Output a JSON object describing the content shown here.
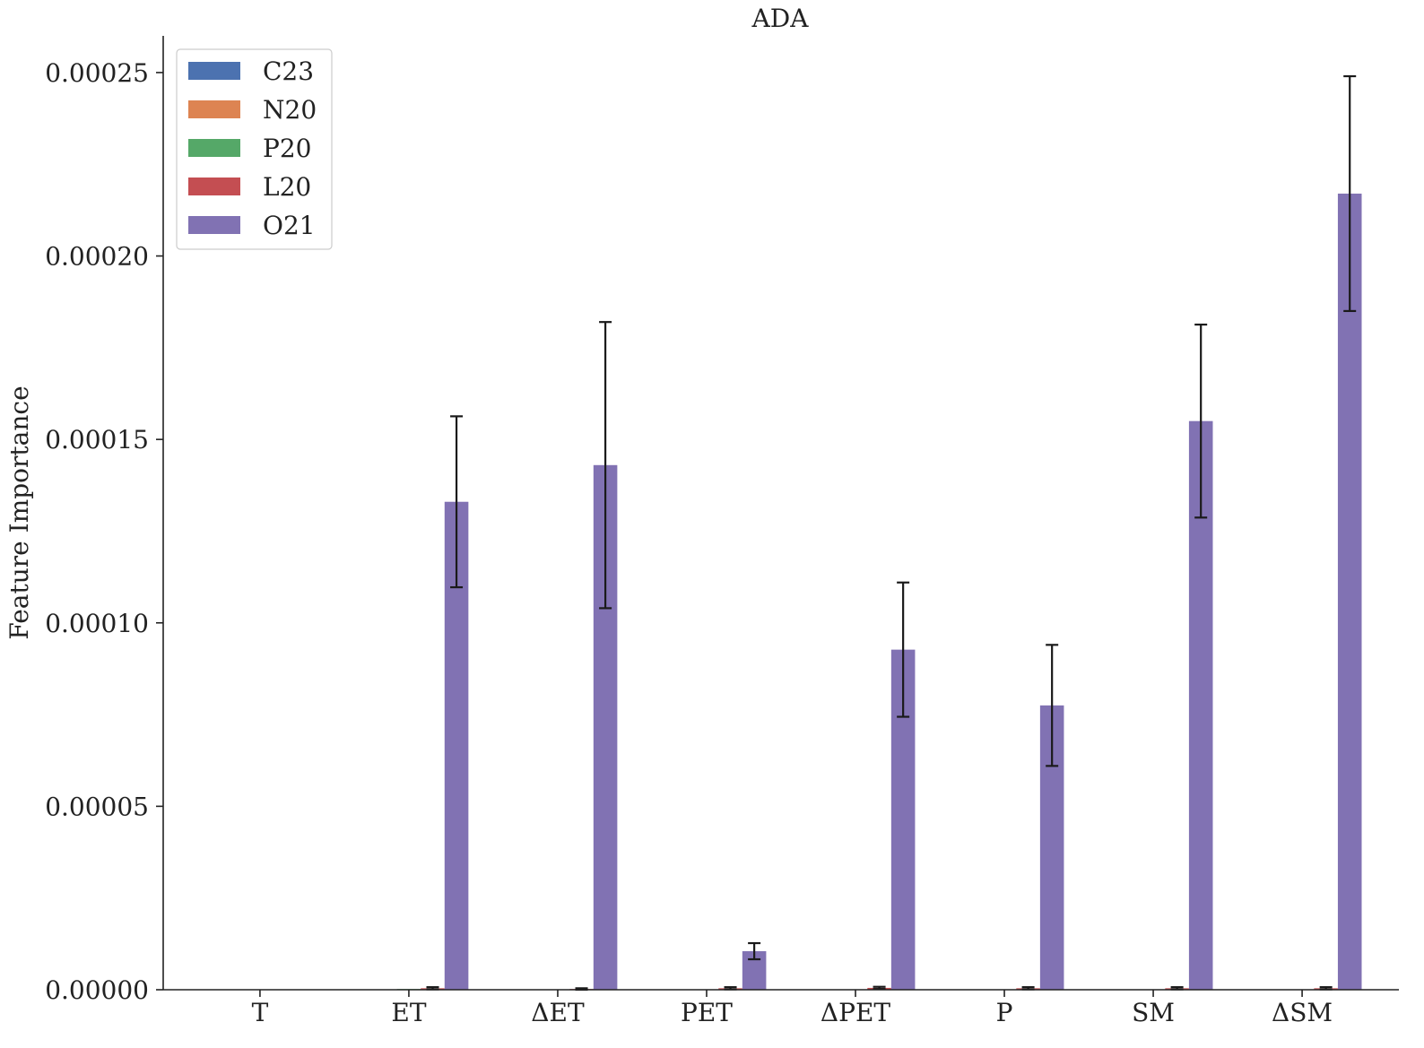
{
  "chart_data": {
    "type": "bar",
    "title": "ADA",
    "xlabel": "",
    "ylabel": "Feature Importance",
    "ylim": [
      0,
      0.00026
    ],
    "yticks": [
      "0.00000",
      "0.00005",
      "0.00010",
      "0.00015",
      "0.00020",
      "0.00025"
    ],
    "ytick_values": [
      0,
      5e-05,
      0.0001,
      0.00015,
      0.0002,
      0.00025
    ],
    "categories": [
      "T",
      "ET",
      "ΔET",
      "PET",
      "ΔPET",
      "P",
      "SM",
      "ΔSM"
    ],
    "legend_position": "top-left",
    "grid": false,
    "series": [
      {
        "name": "C23",
        "color": "#4c72b0",
        "values": [
          0,
          0,
          0,
          0,
          0,
          0,
          0,
          0
        ],
        "errors": [
          0,
          0,
          0,
          0,
          0,
          0,
          0,
          0
        ]
      },
      {
        "name": "N20",
        "color": "#dd8452",
        "values": [
          0,
          0,
          0,
          0,
          0,
          0,
          0,
          0
        ],
        "errors": [
          0,
          0,
          0,
          0,
          0,
          0,
          0,
          0
        ]
      },
      {
        "name": "P20",
        "color": "#55a868",
        "values": [
          0,
          2e-07,
          0,
          1e-07,
          1e-07,
          0,
          0,
          1e-07
        ],
        "errors": [
          0,
          0,
          0,
          0,
          0,
          0,
          0,
          0
        ]
      },
      {
        "name": "L20",
        "color": "#c44e52",
        "values": [
          0,
          4e-07,
          2e-07,
          4e-07,
          5e-07,
          4e-07,
          4e-07,
          4e-07
        ],
        "errors": [
          0,
          3e-07,
          2e-07,
          3e-07,
          3e-07,
          3e-07,
          3e-07,
          3e-07
        ]
      },
      {
        "name": "O21",
        "color": "#8172b3",
        "values": [
          0,
          0.000133,
          0.000143,
          1.05e-05,
          9.27e-05,
          7.75e-05,
          0.000155,
          0.000217
        ],
        "errors": [
          0,
          2.33e-05,
          3.9e-05,
          2.2e-06,
          1.83e-05,
          1.65e-05,
          2.63e-05,
          3.2e-05
        ]
      }
    ]
  }
}
